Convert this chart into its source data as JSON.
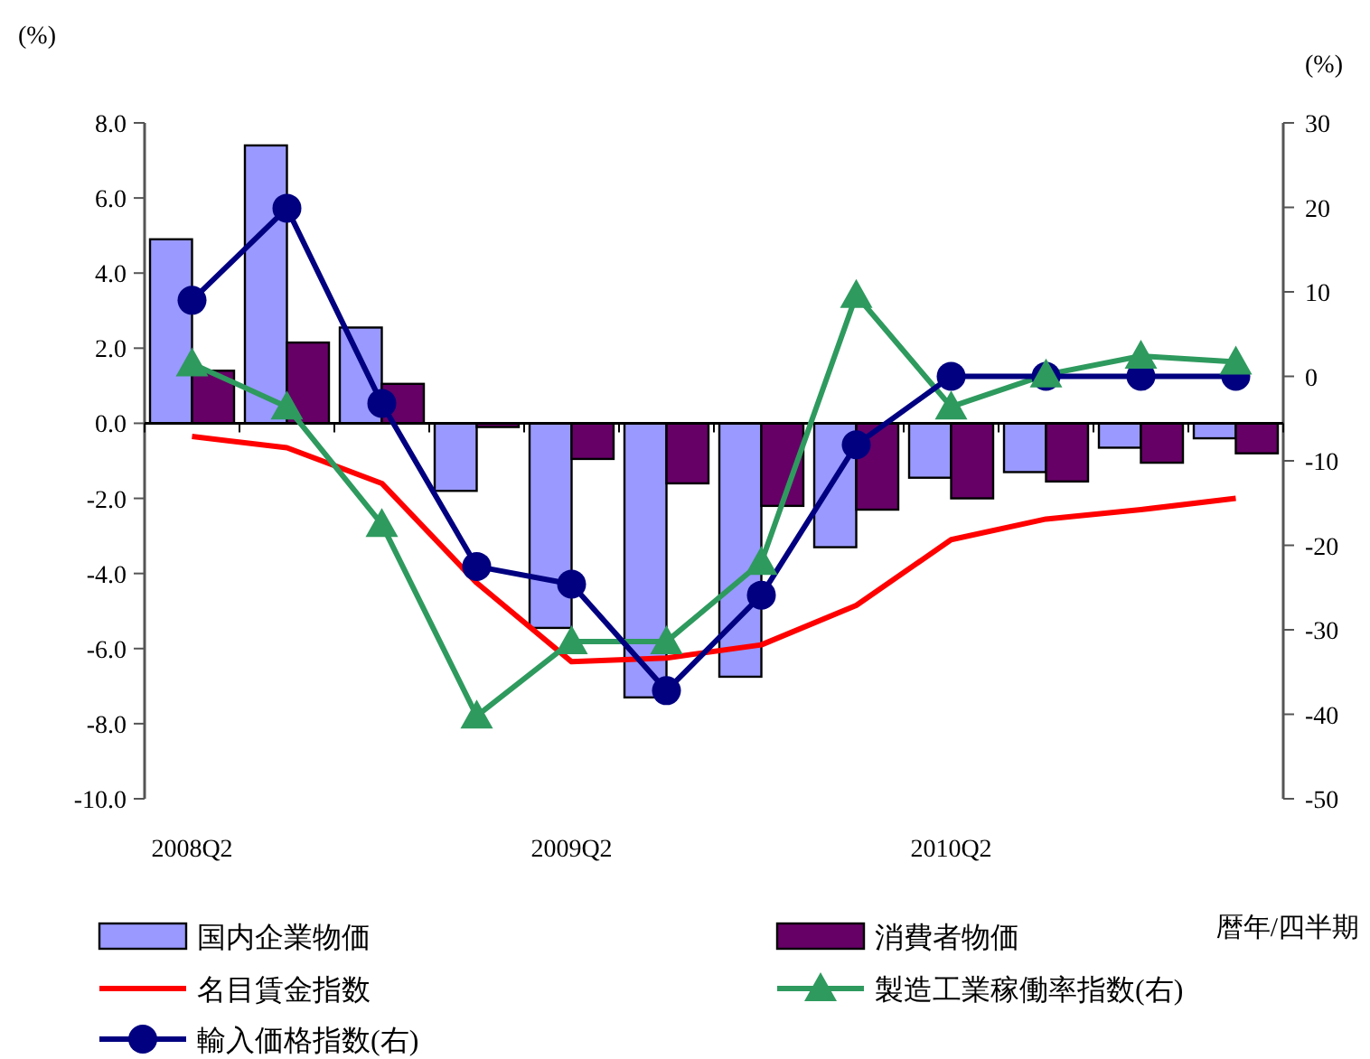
{
  "chart_data": {
    "type": "bar",
    "xlabel": "暦年/四半期",
    "ylabel": "(%)",
    "y2label": "(%)",
    "categories": [
      "2008Q2",
      null,
      null,
      null,
      "2009Q2",
      null,
      null,
      null,
      "2010Q2",
      null,
      null,
      null
    ],
    "ylim": [
      -10,
      8
    ],
    "yticks": [
      {
        "value": 8,
        "label": "8.0"
      },
      {
        "value": 6,
        "label": "6.0"
      },
      {
        "value": 4,
        "label": "4.0"
      },
      {
        "value": 2,
        "label": "2.0"
      },
      {
        "value": 0,
        "label": "0.0"
      },
      {
        "value": -2,
        "label": "-2.0"
      },
      {
        "value": -4,
        "label": "-4.0"
      },
      {
        "value": -6,
        "label": "-6.0"
      },
      {
        "value": -8,
        "label": "-8.0"
      },
      {
        "value": -10,
        "label": "-10.0"
      }
    ],
    "y2lim": [
      -50,
      30
    ],
    "y2ticks": [
      30,
      20,
      10,
      0,
      -10,
      -20,
      -30,
      -40,
      -50
    ],
    "legend": "bottom",
    "series": [
      {
        "name": "国内企業物価",
        "color": "#9999ff",
        "values": [
          4.9,
          7.4,
          2.55,
          -1.8,
          -5.45,
          -7.3,
          -6.75,
          -3.3,
          -1.45,
          -1.3,
          -0.65,
          -0.4
        ]
      },
      {
        "name": "消費者物価",
        "color": "#660066",
        "values": [
          1.4,
          2.15,
          1.05,
          -0.1,
          -0.95,
          -1.6,
          -2.2,
          -2.3,
          -2.0,
          -1.55,
          -1.05,
          -0.8
        ]
      },
      {
        "name": "名目賃金指数",
        "type": "line",
        "color": "#ff0000",
        "marker": "none",
        "values": [
          -0.35,
          -0.65,
          -1.6,
          -4.25,
          -6.35,
          -6.25,
          -5.9,
          -4.85,
          -3.1,
          -2.55,
          -2.3,
          -2.0
        ]
      },
      {
        "name": "製造工業稼働率指数(右)",
        "type": "line",
        "axis": "y2",
        "color": "#2e9a5e",
        "marker": "triangle",
        "values": [
          1.5,
          -3.6,
          -17.5,
          -40.2,
          -31.4,
          -31.4,
          -22,
          9.6,
          -3.6,
          0.2,
          2.4,
          1.7
        ]
      },
      {
        "name": "輸入価格指数(右)",
        "type": "line",
        "axis": "y2",
        "color": "#000080",
        "marker": "circle",
        "values": [
          9,
          19.9,
          -3.2,
          -22.5,
          -24.6,
          -37.2,
          -25.9,
          -8.1,
          0,
          0,
          0,
          0
        ]
      }
    ]
  }
}
